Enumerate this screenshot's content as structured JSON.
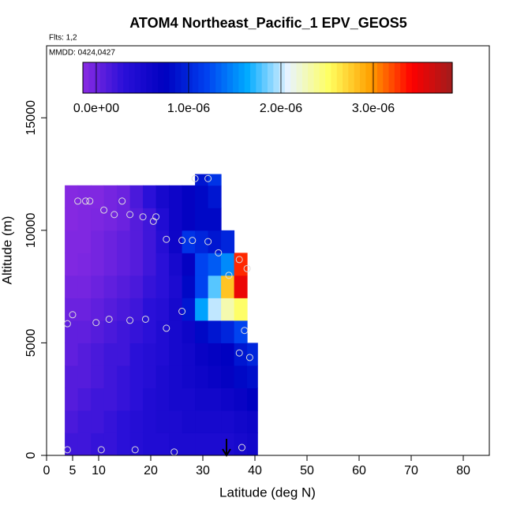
{
  "chart_data": {
    "type": "curtain",
    "title": "ATOM4 Northeast_Pacific_1 EPV_GEOS5",
    "flights": "Flts: 1,2",
    "dates": "MMDD: 0424,0427",
    "xlabel": "Latitude (deg N)",
    "ylabel": "Altitude (m)",
    "xlim": [
      0,
      85
    ],
    "ylim": [
      0,
      18200
    ],
    "xticks": [
      0,
      5,
      10,
      20,
      30,
      40,
      50,
      60,
      70,
      80
    ],
    "yticks": [
      0,
      5000,
      10000,
      15000
    ],
    "xbins": [
      3.5,
      6,
      8.5,
      11,
      13.5,
      16,
      18.5,
      21,
      23.5,
      26,
      28.5,
      31,
      33.5,
      36,
      38.5,
      40.5
    ],
    "ybins": [
      0,
      1000,
      2000,
      3000,
      4000,
      5000,
      6000,
      7000,
      8000,
      9000,
      10000,
      11000,
      12000,
      12500
    ],
    "z": [
      [
        2e-07,
        2e-07,
        2.5e-07,
        2.5e-07,
        3e-07,
        3.5e-07,
        4e-07,
        4e-07,
        4.5e-07,
        4.5e-07,
        4.5e-07,
        4.5e-07,
        4.5e-07,
        5e-07,
        5.5e-07
      ],
      [
        1.5e-07,
        2e-07,
        2e-07,
        2.5e-07,
        3e-07,
        3.5e-07,
        4e-07,
        4.5e-07,
        4.5e-07,
        5e-07,
        5e-07,
        5e-07,
        5e-07,
        5.5e-07,
        6e-07
      ],
      [
        1e-07,
        1.5e-07,
        2e-07,
        2e-07,
        2.5e-07,
        3e-07,
        4e-07,
        4.5e-07,
        5e-07,
        5e-07,
        5.5e-07,
        5.5e-07,
        6e-07,
        6.5e-07,
        7.5e-07
      ],
      [
        1e-07,
        1e-07,
        1.5e-07,
        2e-07,
        2.5e-07,
        3e-07,
        3.5e-07,
        4.5e-07,
        5e-07,
        5.5e-07,
        6e-07,
        6.5e-07,
        7e-07,
        8e-07,
        8.5e-07
      ],
      [
        5e-08,
        1e-07,
        1.5e-07,
        2e-07,
        2e-07,
        3e-07,
        3.5e-07,
        4e-07,
        5e-07,
        5.5e-07,
        6.5e-07,
        7e-07,
        7.5e-07,
        9e-07,
        1e-06
      ],
      [
        5e-08,
        5e-08,
        1e-07,
        1.5e-07,
        2e-07,
        2.5e-07,
        3e-07,
        4e-07,
        5e-07,
        6e-07,
        8e-07,
        9e-07,
        1e-06,
        1.2e-06,
        null
      ],
      [
        0,
        0,
        5e-08,
        1e-07,
        1.5e-07,
        2e-07,
        3e-07,
        3.5e-07,
        5e-07,
        9e-07,
        1.6e-06,
        2e-06,
        2.3e-06,
        2.5e-06,
        null
      ],
      [
        -5e-08,
        -5e-08,
        0,
        5e-08,
        1e-07,
        1.5e-07,
        2.5e-07,
        3e-07,
        4.5e-07,
        8e-07,
        1.2e-06,
        1.8e-06,
        2.8e-06,
        3.5e-06,
        null
      ],
      [
        -1e-07,
        -8e-08,
        -5e-08,
        0,
        5e-08,
        1e-07,
        2e-07,
        3e-07,
        5e-07,
        7e-07,
        1.2e-06,
        1.3e-06,
        1.5e-06,
        3.3e-06,
        null
      ],
      [
        -1e-07,
        -1e-07,
        -5e-08,
        0,
        5e-08,
        1e-07,
        2e-07,
        3.5e-07,
        6e-07,
        1.1e-06,
        1e-06,
        9e-07,
        1e-06,
        null,
        null
      ],
      [
        -1.2e-07,
        -1e-07,
        -8e-08,
        -5e-08,
        0,
        1e-07,
        2e-07,
        4e-07,
        6e-07,
        7e-07,
        8e-07,
        8e-07,
        null,
        null,
        null
      ],
      [
        -1.2e-07,
        -1e-07,
        -1e-07,
        -5e-08,
        0,
        1.5e-07,
        3e-07,
        5e-07,
        6e-07,
        7e-07,
        8e-07,
        9e-07,
        null,
        null,
        null
      ],
      [
        null,
        null,
        null,
        null,
        null,
        null,
        null,
        null,
        null,
        null,
        9e-07,
        1.1e-06,
        null,
        null,
        null
      ]
    ],
    "zlim": [
      -1.45e-07,
      3.855e-06
    ],
    "zticks": [
      {
        "value": 0,
        "label": "0.0e+00"
      },
      {
        "value": 1e-06,
        "label": "1.0e-06"
      },
      {
        "value": 2e-06,
        "label": "2.0e-06"
      },
      {
        "value": 3e-06,
        "label": "3.0e-06"
      }
    ],
    "colormap": [
      "#8a2be2",
      "#2a10d8",
      "#0000c0",
      "#0040f0",
      "#00aaff",
      "#e8f4ff",
      "#ffff60",
      "#ffa000",
      "#ff0000",
      "#a01c1c"
    ],
    "points": {
      "x": [
        4,
        10.5,
        17,
        24.5,
        37.5,
        4,
        5,
        9.5,
        12,
        16,
        19,
        23,
        26,
        38,
        39,
        37,
        6,
        7.5,
        8.3,
        14.5,
        11,
        13,
        16,
        18.5,
        21,
        20.5,
        23,
        26,
        28,
        31,
        33,
        35,
        37,
        38.5,
        28.5,
        31
      ],
      "y": [
        250,
        250,
        250,
        150,
        350,
        5850,
        6250,
        5900,
        6050,
        6000,
        6050,
        5650,
        6400,
        5550,
        4350,
        4550,
        11300,
        11300,
        11300,
        11300,
        10900,
        10700,
        10700,
        10600,
        10600,
        10400,
        9600,
        9550,
        9550,
        9500,
        9000,
        8000,
        8700,
        8300,
        12300,
        12300
      ],
      "color": "#dddddd"
    }
  }
}
